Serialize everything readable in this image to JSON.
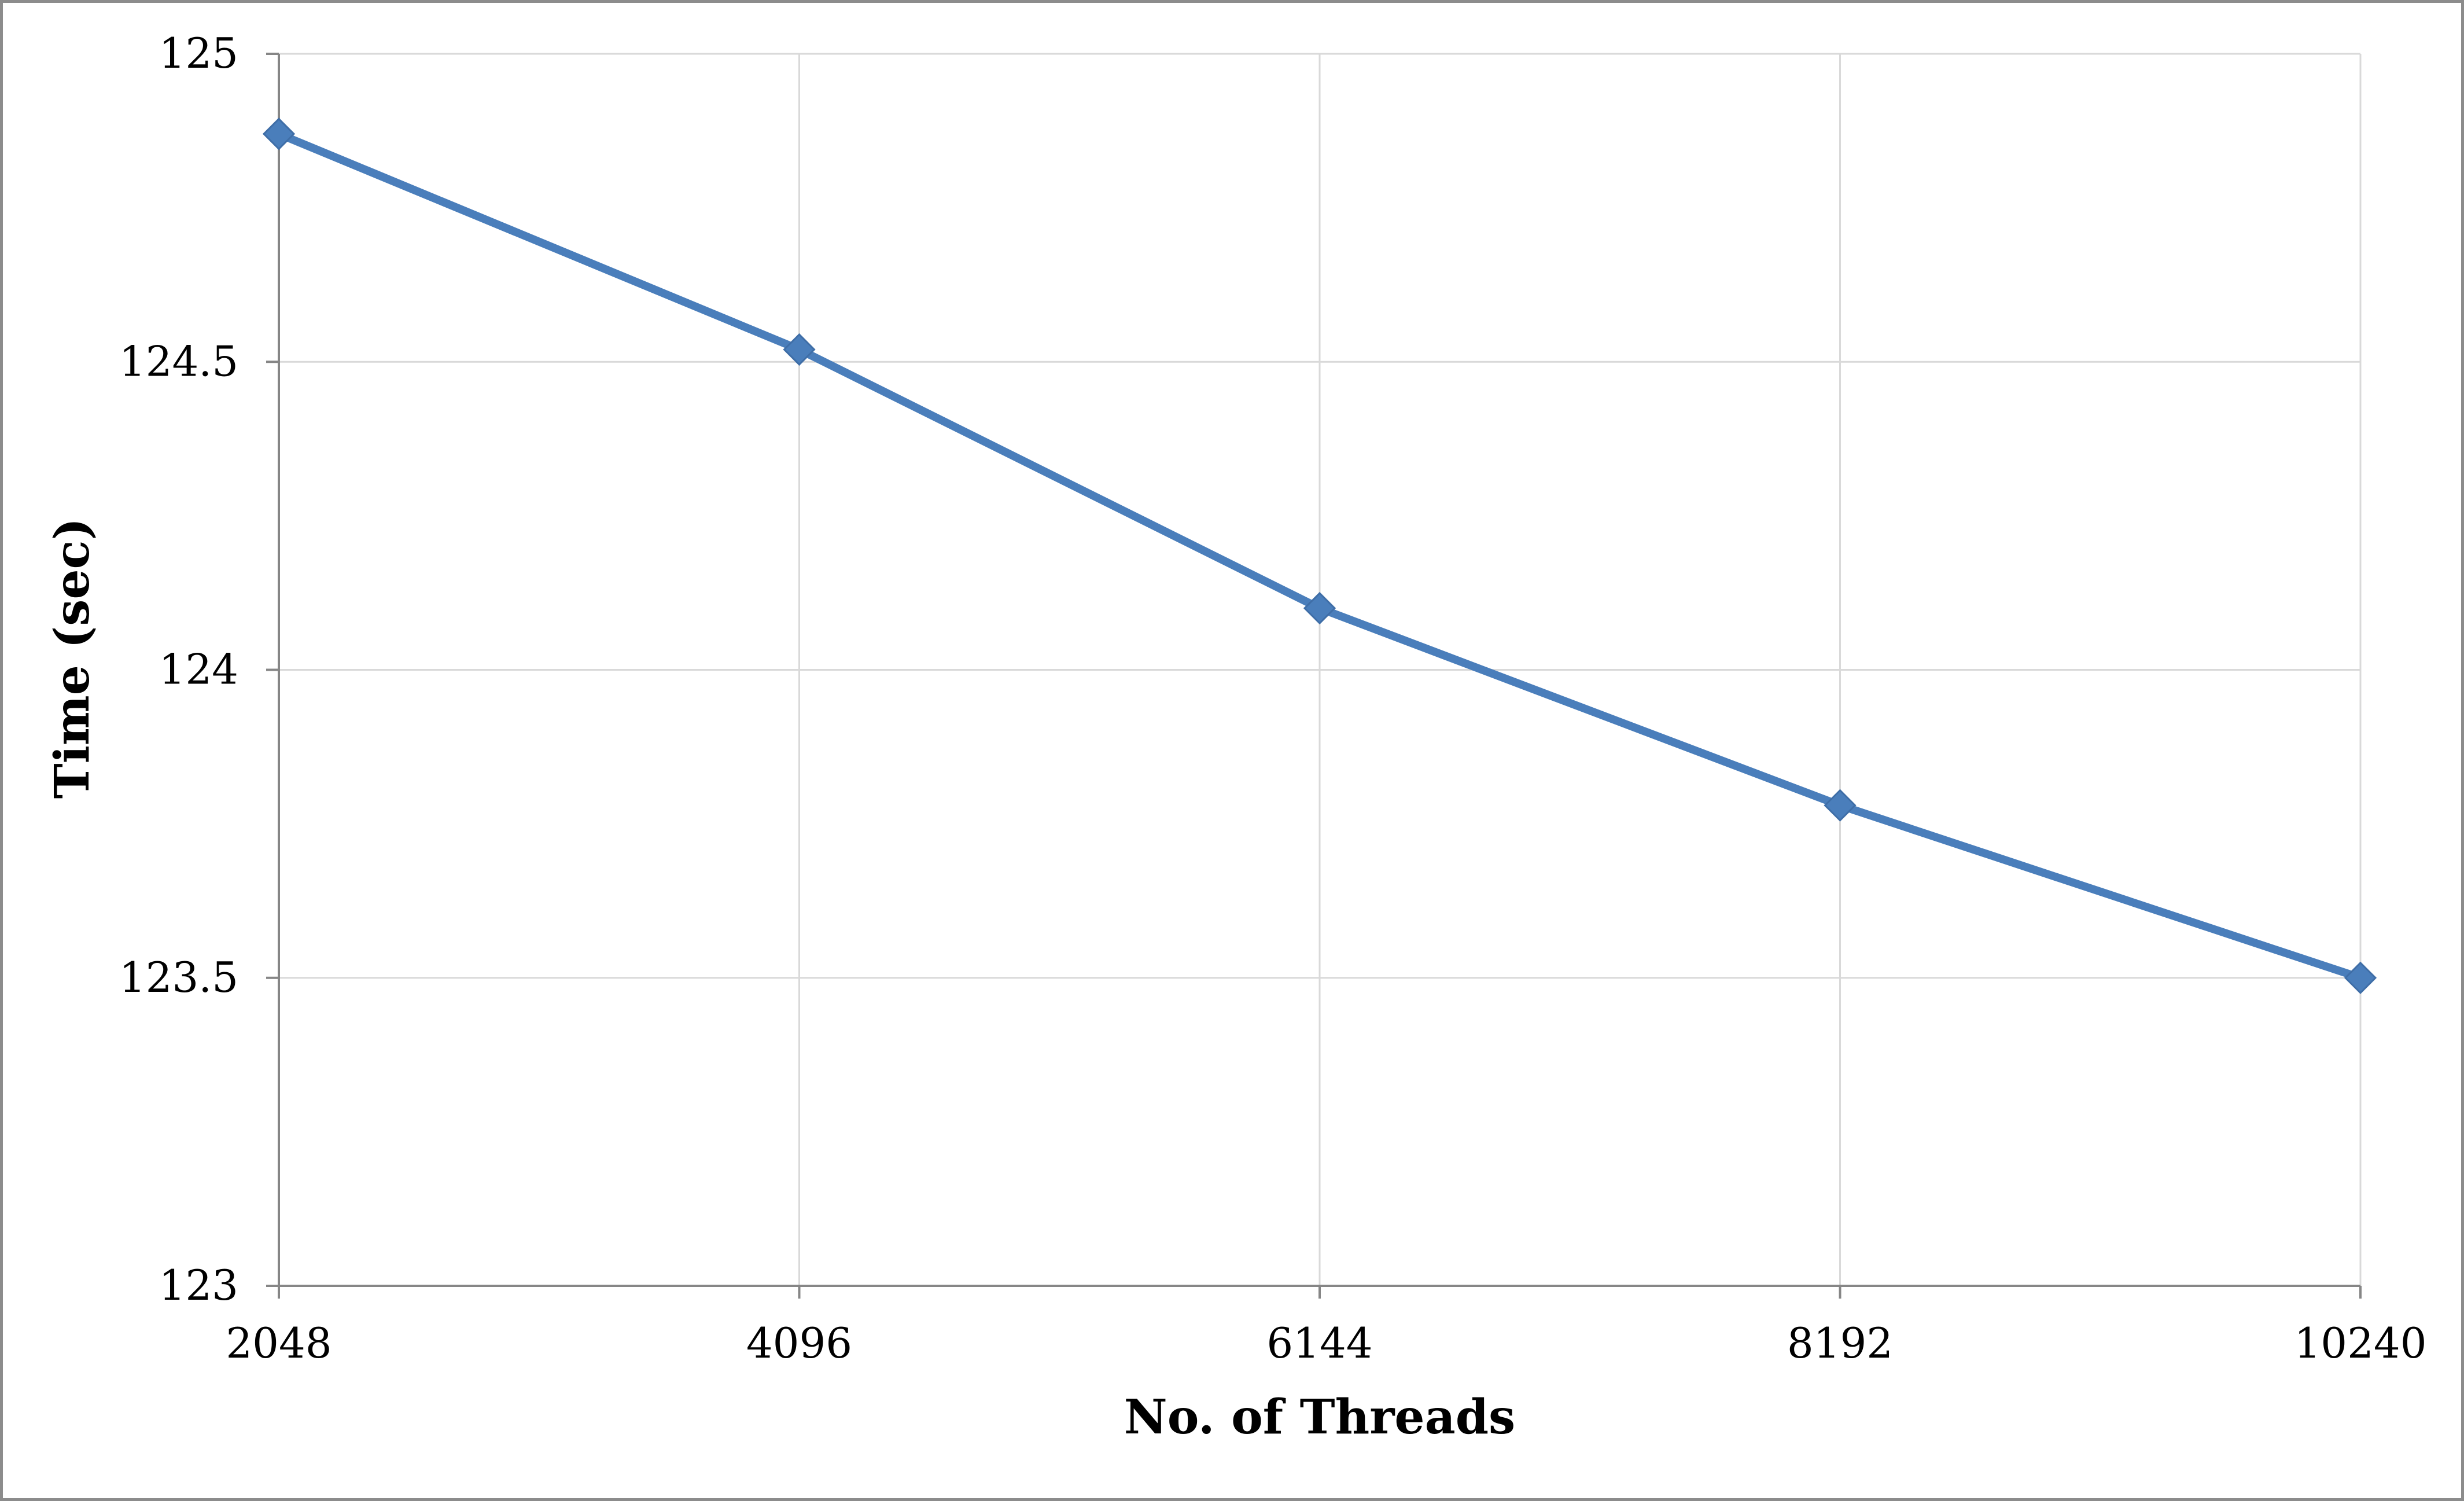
{
  "chart_data": {
    "type": "line",
    "title": "",
    "xlabel": "No. of Threads",
    "ylabel": "Time (sec)",
    "categories": [
      "2048",
      "4096",
      "6144",
      "8192",
      "10240"
    ],
    "ylim": [
      123,
      125
    ],
    "yticks": [
      "123",
      "123.5",
      "124",
      "124.5",
      "125"
    ],
    "grid": true,
    "legend": "none",
    "series": [
      {
        "color": "#4a7ebb",
        "marker": "diamond",
        "values": [
          124.87,
          124.52,
          124.1,
          123.78,
          123.5
        ]
      }
    ]
  }
}
